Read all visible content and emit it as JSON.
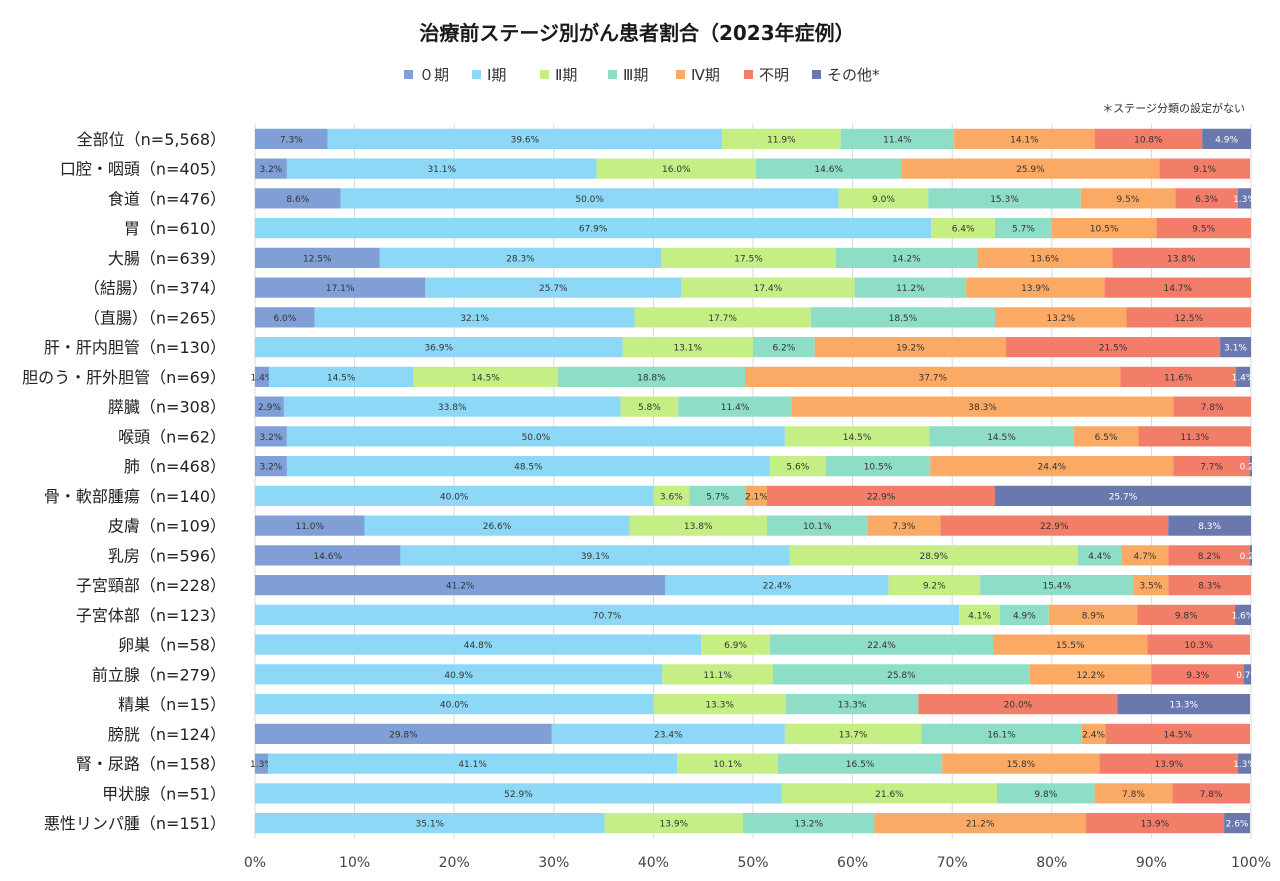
{
  "chart_data": {
    "type": "bar",
    "orientation": "horizontal",
    "stacked": true,
    "title": "治療前ステージ別がん患者割合（2023年症例）",
    "note": "＊ステージ分類の設定がない",
    "legend_position": "top",
    "x_ticks": [
      "0%",
      "10%",
      "20%",
      "30%",
      "40%",
      "50%",
      "60%",
      "70%",
      "80%",
      "90%",
      "100%"
    ],
    "xlim": [
      0,
      100
    ],
    "grid": true,
    "categories": [
      "全部位（n=5,568）",
      "口腔・咽頭（n=405）",
      "食道（n=476）",
      "胃（n=610）",
      "大腸（n=639）",
      "（結腸）（n=374）",
      "（直腸）（n=265）",
      "肝・肝内胆管（n=130）",
      "胆のう・肝外胆管（n=69）",
      "膵臓（n=308）",
      "喉頭（n=62）",
      "肺（n=468）",
      "骨・軟部腫瘍（n=140）",
      "皮膚（n=109）",
      "乳房（n=596）",
      "子宮頸部（n=228）",
      "子宮体部（n=123）",
      "卵巣（n=58）",
      "前立腺（n=279）",
      "精巣（n=15）",
      "膀胱（n=124）",
      "腎・尿路（n=158）",
      "甲状腺（n=51）",
      "悪性リンパ腫（n=151）"
    ],
    "series": [
      {
        "name": "０期",
        "color": "#7F9FD6",
        "label_light": false,
        "values": [
          7.3,
          3.2,
          8.6,
          0,
          12.5,
          17.1,
          6.0,
          0,
          1.4,
          2.9,
          3.2,
          3.2,
          0,
          11.0,
          14.6,
          41.2,
          0,
          0,
          0,
          0,
          29.8,
          1.3,
          0,
          0
        ]
      },
      {
        "name": "Ⅰ期",
        "color": "#8DD8F6",
        "label_light": false,
        "values": [
          39.6,
          31.1,
          50.0,
          67.9,
          28.3,
          25.7,
          32.1,
          36.9,
          14.5,
          33.8,
          50.0,
          48.5,
          40.0,
          26.6,
          39.1,
          22.4,
          70.7,
          44.8,
          40.9,
          40.0,
          23.4,
          41.1,
          52.9,
          35.1
        ]
      },
      {
        "name": "Ⅱ期",
        "color": "#C5EE84",
        "label_light": false,
        "values": [
          11.9,
          16.0,
          9.0,
          6.4,
          17.5,
          17.4,
          17.7,
          13.1,
          14.5,
          5.8,
          14.5,
          5.6,
          3.6,
          13.8,
          28.9,
          9.2,
          4.1,
          6.9,
          11.1,
          13.3,
          13.7,
          10.1,
          21.6,
          13.9
        ]
      },
      {
        "name": "Ⅲ期",
        "color": "#8EDDC6",
        "label_light": false,
        "values": [
          11.4,
          14.6,
          15.3,
          5.7,
          14.2,
          11.2,
          18.5,
          6.2,
          18.8,
          11.4,
          14.5,
          10.5,
          5.7,
          10.1,
          4.4,
          15.4,
          4.9,
          22.4,
          25.8,
          13.3,
          16.1,
          16.5,
          9.8,
          13.2
        ]
      },
      {
        "name": "Ⅳ期",
        "color": "#FBAA66",
        "label_light": false,
        "values": [
          14.1,
          25.9,
          9.5,
          10.5,
          13.6,
          13.9,
          13.2,
          19.2,
          37.7,
          38.3,
          6.5,
          24.4,
          2.1,
          7.3,
          4.7,
          3.5,
          8.9,
          15.5,
          12.2,
          0,
          2.4,
          15.8,
          7.8,
          21.2
        ]
      },
      {
        "name": "不明",
        "color": "#F27E6A",
        "label_light": false,
        "values": [
          10.8,
          9.1,
          6.3,
          9.5,
          13.8,
          14.7,
          12.5,
          21.5,
          11.6,
          7.8,
          11.3,
          7.7,
          22.9,
          22.9,
          8.2,
          8.3,
          9.8,
          10.3,
          9.3,
          20.0,
          14.5,
          13.9,
          7.8,
          13.9
        ]
      },
      {
        "name": "その他*",
        "color": "#6A78AE",
        "label_light": true,
        "values": [
          4.9,
          0,
          1.3,
          0,
          0,
          0,
          0,
          3.1,
          1.4,
          0,
          0,
          0.2,
          25.7,
          8.3,
          0.2,
          0,
          1.6,
          0,
          0.7,
          13.3,
          0,
          1.3,
          0,
          2.6
        ]
      }
    ]
  }
}
